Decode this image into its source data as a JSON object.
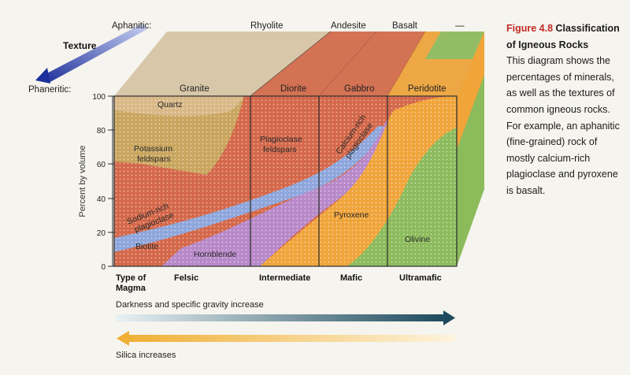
{
  "figure": {
    "number": "Figure 4.8",
    "title": "Classification of Igneous Rocks",
    "caption": "This diagram shows the percentages of minerals, as well as the textures of common igneous rocks. For example, an aphanitic (fine-grained) rock of mostly calcium-rich plagioclase and pyroxene is basalt."
  },
  "texture": {
    "label": "Texture",
    "aphanitic": "Aphanitic:",
    "phaneritic": "Phaneritic:"
  },
  "aphanitic_rocks": [
    "Rhyolite",
    "Andesite",
    "Basalt",
    "—"
  ],
  "phaneritic_rocks": [
    "Granite",
    "Diorite",
    "Gabbro",
    "Peridotite"
  ],
  "y_axis": {
    "label": "Percent by volume",
    "ticks": [
      "100",
      "80",
      "60",
      "40",
      "20",
      "0"
    ]
  },
  "magma": {
    "label_line1": "Type of",
    "label_line2": "Magma",
    "types": [
      "Felsic",
      "Intermediate",
      "Mafic",
      "Ultramafic"
    ]
  },
  "minerals": {
    "quartz": "Quartz",
    "k_feldspar_1": "Potassium",
    "k_feldspar_2": "feldspars",
    "plag_1": "Plagioclase",
    "plag_2": "feldspars",
    "na_plag_1": "Sodium-rich",
    "na_plag_2": "plagioclase",
    "ca_plag_1": "Calcium-rich",
    "ca_plag_2": "plagioclase",
    "biotite": "Biotite",
    "hornblende": "Hornblende",
    "pyroxene": "Pyroxene",
    "olivine": "Olivine"
  },
  "trends": {
    "darkness": "Darkness and specific gravity increase",
    "silica": "Silica increases"
  },
  "colors": {
    "figure_number": "#c02a25",
    "quartz": "#d9b887",
    "k_feldspar": "#c9a55e",
    "plagioclase": "#d4684a",
    "biotite": "#8ea6dc",
    "hornblende": "#b889c9",
    "pyroxene": "#f0a43a",
    "olivine": "#8cbb5c",
    "darkness_arrow": "#1d4a5c",
    "silica_arrow": "#f0b036"
  }
}
